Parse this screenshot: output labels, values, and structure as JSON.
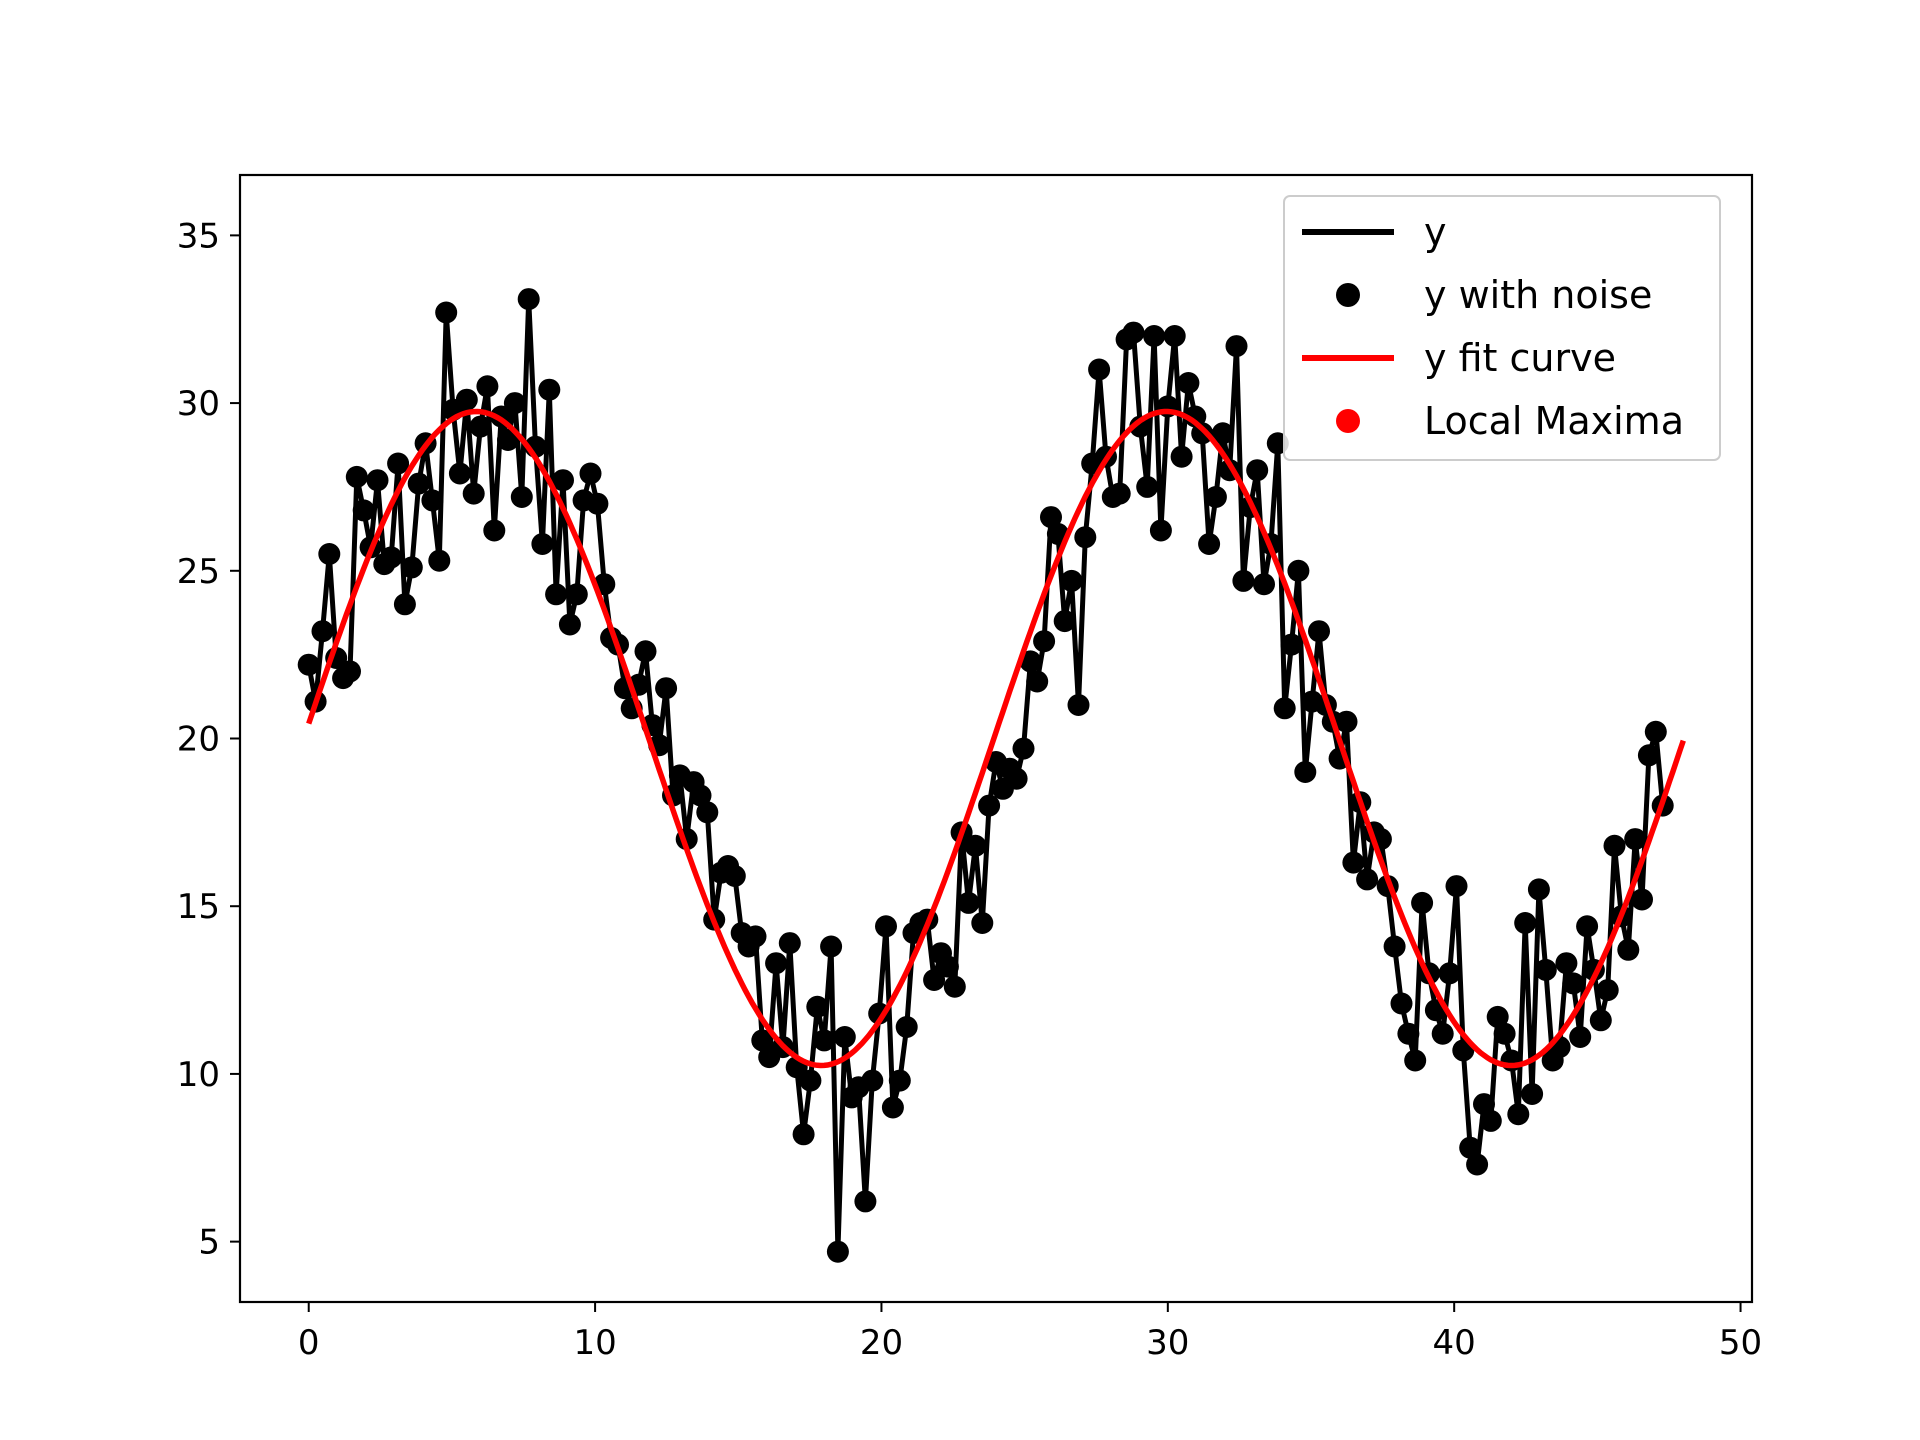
{
  "chart_data": {
    "type": "line",
    "title": "",
    "xlabel": "",
    "ylabel": "",
    "xlim": [
      -2.4,
      50.4
    ],
    "ylim": [
      3.2,
      36.8
    ],
    "x_ticks": [
      0,
      10,
      20,
      30,
      40,
      50
    ],
    "y_ticks": [
      5,
      10,
      15,
      20,
      25,
      30,
      35
    ],
    "grid": false,
    "legend_position": "upper right",
    "colors": {
      "y": "#000000",
      "noise": "#000000",
      "fit": "#ff0000",
      "maxima": "#ff0000"
    },
    "legend": [
      "y",
      "y with noise",
      "y fit curve",
      "Local Maxima"
    ],
    "x_start": 0,
    "x_step": 0.24,
    "series": [
      {
        "name": "y",
        "kind": "line",
        "color": "#000000",
        "note": "Drawn through the same noisy points as 'y with noise'"
      },
      {
        "name": "y with noise",
        "kind": "scatter",
        "color": "#000000",
        "values": [
          22.2,
          21.1,
          23.2,
          25.5,
          22.4,
          21.8,
          22.0,
          27.8,
          26.8,
          25.7,
          27.7,
          25.2,
          25.4,
          28.2,
          24.0,
          25.1,
          27.6,
          28.8,
          27.1,
          25.3,
          32.7,
          29.8,
          27.9,
          30.1,
          27.3,
          29.3,
          30.5,
          26.2,
          29.6,
          28.9,
          30.0,
          27.2,
          33.1,
          28.7,
          25.8,
          30.4,
          24.3,
          27.7,
          23.4,
          24.3,
          27.1,
          27.9,
          27.0,
          24.6,
          23.0,
          22.8,
          21.5,
          20.9,
          21.6,
          22.6,
          20.4,
          19.8,
          21.5,
          18.3,
          18.9,
          17.0,
          18.7,
          18.3,
          17.8,
          14.6,
          16.0,
          16.2,
          15.9,
          14.2,
          13.8,
          14.1,
          11.0,
          10.5,
          13.3,
          10.8,
          13.9,
          10.2,
          8.2,
          9.8,
          12.0,
          11.0,
          13.8,
          4.7,
          11.1,
          9.3,
          9.6,
          6.2,
          9.8,
          11.8,
          14.4,
          9.0,
          9.8,
          11.4,
          14.2,
          14.5,
          14.6,
          12.8,
          13.6,
          13.2,
          12.6,
          17.2,
          15.1,
          16.8,
          14.5,
          18.0,
          19.3,
          18.5,
          19.1,
          18.8,
          19.7,
          22.3,
          21.7,
          22.9,
          26.6,
          26.1,
          23.5,
          24.7,
          21.0,
          26.0,
          28.2,
          31.0,
          28.4,
          27.2,
          27.3,
          31.9,
          32.1,
          29.3,
          27.5,
          32.0,
          26.2,
          29.9,
          32.0,
          28.4,
          30.6,
          29.6,
          29.1,
          25.8,
          27.2,
          29.1,
          28.0,
          31.7,
          24.7,
          26.9,
          28.0,
          24.6,
          25.8,
          28.8,
          20.9,
          22.8,
          25.0,
          19.0,
          21.1,
          23.2,
          21.0,
          20.5,
          19.4,
          20.5,
          16.3,
          18.1,
          15.8,
          17.2,
          17.0,
          15.6,
          13.8,
          12.1,
          11.2,
          10.4,
          15.1,
          13.0,
          11.9,
          11.2,
          13.0,
          15.6,
          10.7,
          7.8,
          7.3,
          9.1,
          8.6,
          11.7,
          11.2,
          10.4,
          8.8,
          14.5,
          9.4,
          15.5,
          13.1,
          10.4,
          10.8,
          13.3,
          12.7,
          11.1,
          14.4,
          13.1,
          11.6,
          12.5,
          16.8,
          14.7,
          13.7,
          17.0,
          15.2,
          19.5,
          20.2,
          18.0
        ]
      },
      {
        "name": "y fit curve",
        "kind": "line",
        "color": "#ff0000",
        "function": "20 + 9.75 * sin(2*pi*(x - 5.85)/24.1 + pi/2)",
        "amplitude": 9.75,
        "offset": 20,
        "period": 24.1,
        "peak_x": 5.85,
        "x_range": [
          0,
          48
        ]
      },
      {
        "name": "Local Maxima",
        "kind": "scatter",
        "color": "#ff0000",
        "values": []
      }
    ]
  }
}
